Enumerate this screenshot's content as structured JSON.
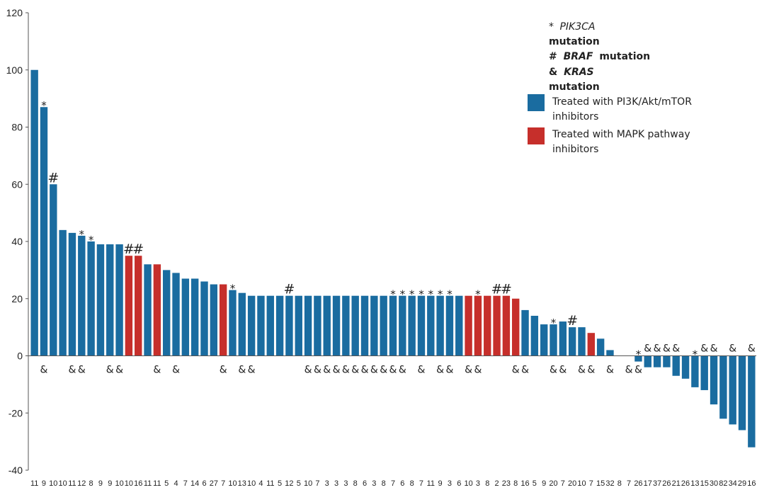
{
  "chart_data": {
    "type": "bar",
    "ylim": [
      -40,
      120
    ],
    "yticks": [
      120,
      100,
      80,
      60,
      40,
      20,
      0,
      -20,
      -40
    ],
    "colors": {
      "pi3k": "#1a6ca0",
      "mapk": "#c62f2b"
    },
    "categories": [
      "11",
      "9",
      "10",
      "10",
      "11",
      "12",
      "8",
      "9",
      "9",
      "10",
      "10",
      "16",
      "11",
      "11",
      "5",
      "4",
      "7",
      "14",
      "6",
      "27",
      "7",
      "10",
      "13",
      "10",
      "4",
      "11",
      "5",
      "12",
      "5",
      "10",
      "7",
      "3",
      "3",
      "3",
      "8",
      "6",
      "3",
      "8",
      "7",
      "6",
      "8",
      "7",
      "11",
      "9",
      "3",
      "6",
      "10",
      "3",
      "8",
      "2",
      "23",
      "8",
      "16",
      "5",
      "9",
      "20",
      "7",
      "20",
      "10",
      "7",
      "15",
      "32",
      "8",
      "7",
      "26",
      "17",
      "37",
      "26",
      "21",
      "26",
      "13",
      "15",
      "30",
      "82",
      "34",
      "29",
      "16"
    ],
    "values": [
      100,
      87,
      60,
      44,
      43,
      42,
      40,
      39,
      39,
      39,
      35,
      35,
      32,
      32,
      30,
      29,
      27,
      27,
      26,
      25,
      25,
      23,
      22,
      21,
      21,
      21,
      21,
      21,
      21,
      21,
      21,
      21,
      21,
      21,
      21,
      21,
      21,
      21,
      21,
      21,
      21,
      21,
      21,
      21,
      21,
      21,
      21,
      21,
      21,
      21,
      21,
      20,
      16,
      14,
      11,
      11,
      12,
      10,
      10,
      8,
      6,
      2,
      0,
      0,
      -2,
      -4,
      -4,
      -4,
      -7,
      -8,
      -11,
      -12,
      -17,
      -22,
      -24,
      -26,
      -32
    ],
    "groups": [
      "b",
      "b",
      "b",
      "b",
      "b",
      "b",
      "b",
      "b",
      "b",
      "b",
      "r",
      "r",
      "b",
      "r",
      "b",
      "b",
      "b",
      "b",
      "b",
      "b",
      "r",
      "b",
      "b",
      "b",
      "b",
      "b",
      "b",
      "b",
      "b",
      "b",
      "b",
      "b",
      "b",
      "b",
      "b",
      "b",
      "b",
      "b",
      "b",
      "b",
      "b",
      "b",
      "b",
      "b",
      "b",
      "b",
      "r",
      "r",
      "r",
      "r",
      "r",
      "r",
      "b",
      "b",
      "b",
      "b",
      "b",
      "b",
      "b",
      "r",
      "b",
      "b",
      "b",
      "b",
      "b",
      "b",
      "b",
      "b",
      "b",
      "b",
      "b",
      "b",
      "b",
      "b",
      "b",
      "b",
      "b"
    ],
    "top_marks": [
      {
        "i": 1,
        "t": "*"
      },
      {
        "i": 2,
        "t": "#"
      },
      {
        "i": 5,
        "t": "*"
      },
      {
        "i": 6,
        "t": "*"
      },
      {
        "i": 10,
        "t": "#"
      },
      {
        "i": 11,
        "t": "#"
      },
      {
        "i": 21,
        "t": "*"
      },
      {
        "i": 27,
        "t": "#"
      },
      {
        "i": 38,
        "t": "*"
      },
      {
        "i": 39,
        "t": "*"
      },
      {
        "i": 40,
        "t": "*"
      },
      {
        "i": 41,
        "t": "*"
      },
      {
        "i": 42,
        "t": "*"
      },
      {
        "i": 43,
        "t": "*"
      },
      {
        "i": 44,
        "t": "*"
      },
      {
        "i": 47,
        "t": "*"
      },
      {
        "i": 49,
        "t": "#"
      },
      {
        "i": 50,
        "t": "#"
      },
      {
        "i": 55,
        "t": "*"
      },
      {
        "i": 57,
        "t": "#"
      },
      {
        "i": 64,
        "t": "*"
      },
      {
        "i": 70,
        "t": "*"
      }
    ],
    "below_marks": [
      1,
      4,
      5,
      8,
      9,
      13,
      15,
      20,
      22,
      23,
      29,
      30,
      31,
      32,
      33,
      34,
      35,
      36,
      37,
      38,
      39,
      41,
      43,
      44,
      46,
      47,
      51,
      52,
      55,
      56,
      58,
      59,
      61,
      63,
      64
    ],
    "neg_marks": [
      65,
      66,
      67,
      68,
      71,
      72,
      74,
      76
    ],
    "legend": {
      "mutations": [
        {
          "symbol": "*",
          "gene": "PIK3CA",
          "word": "mutation"
        },
        {
          "symbol": "#",
          "gene": "BRAF",
          "word": "mutation"
        },
        {
          "symbol": "&",
          "gene": "KRAS",
          "word": "mutation"
        }
      ],
      "series": [
        {
          "key": "pi3k",
          "line1": "Treated with PI3K/Akt/mTOR",
          "line2": "inhibitors"
        },
        {
          "key": "mapk",
          "line1": "Treated with MAPK pathway",
          "line2": "inhibitors"
        }
      ]
    }
  }
}
